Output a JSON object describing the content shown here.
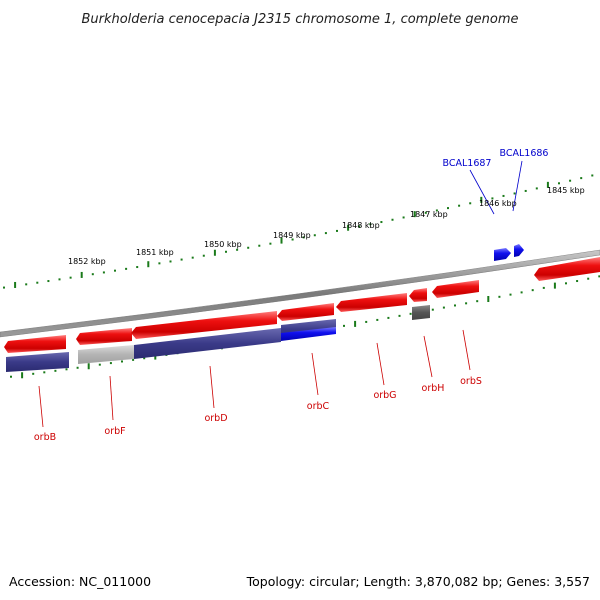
{
  "title": "Burkholderia cenocepacia J2315 chromosome 1, complete genome",
  "footer": {
    "accession": "Accession: NC_011000",
    "summary": "Topology: circular; Length: 3,870,082 bp; Genes: 3,557"
  },
  "kbp_labels": [
    "1852 kbp",
    "1851 kbp",
    "1850 kbp",
    "1849 kbp",
    "1848 kbp",
    "1847 kbp",
    "1846 kbp",
    "1845 kbp"
  ],
  "top_gene_labels": [
    "BCAL1687",
    "BCAL1686"
  ],
  "bottom_gene_labels": [
    "orbB",
    "orbF",
    "orbD",
    "orbC",
    "orbG",
    "orbH",
    "orbS"
  ],
  "colors": {
    "backbone": "#8a8a8a",
    "gene_forward": "#e80000",
    "gene_reverse": "#1414ee",
    "feature_track": "#3c3c8c",
    "feature_track_light": "#b8b8b8",
    "feature_grey": "#5a5a5a",
    "tick": "#1a7a1a",
    "label_red": "#cc0000",
    "label_blue": "#0000cc"
  }
}
